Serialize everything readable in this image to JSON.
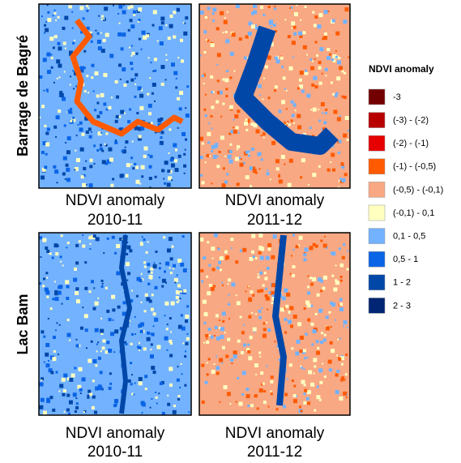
{
  "rows": [
    {
      "label": "Barrage de Bagré",
      "panels": [
        {
          "caption_line1": "NDVI anomaly",
          "caption_line2": "2010-11"
        },
        {
          "caption_line1": "NDVI anomaly",
          "caption_line2": "2011-12"
        }
      ]
    },
    {
      "label": "Lac Bam",
      "panels": [
        {
          "caption_line1": "NDVI anomaly",
          "caption_line2": "2010-11"
        },
        {
          "caption_line1": "NDVI anomaly",
          "caption_line2": "2011-12"
        }
      ]
    }
  ],
  "legend": {
    "title": "NDVI anomaly",
    "items": [
      {
        "label": "-3",
        "color": "#730000"
      },
      {
        "label": "(-3) - (-2)",
        "color": "#b80000"
      },
      {
        "label": "(-2) - (-1)",
        "color": "#e60000"
      },
      {
        "label": "(-1) - (-0,5)",
        "color": "#ff5a00"
      },
      {
        "label": "(-0,5) - (-0,1)",
        "color": "#f8a883"
      },
      {
        "label": "(-0,1) - 0,1",
        "color": "#ffffc0"
      },
      {
        "label": "0,1 - 0,5",
        "color": "#73b2ff"
      },
      {
        "label": "0,5 - 1",
        "color": "#0a64e6"
      },
      {
        "label": "1 - 2",
        "color": "#0047a8"
      },
      {
        "label": "2 - 3",
        "color": "#002673"
      }
    ]
  }
}
